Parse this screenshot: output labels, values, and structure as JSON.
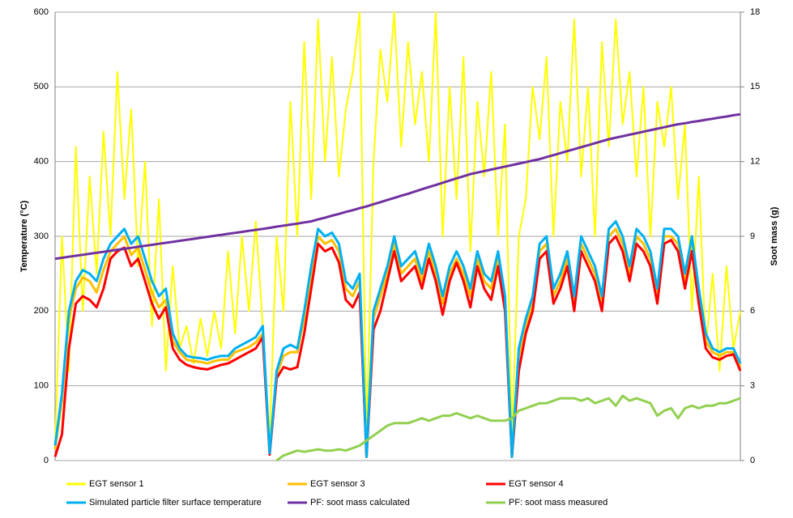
{
  "chart_data": {
    "type": "line",
    "ylabel": "Temperature (°C)",
    "y2label": "Soot mass (g)",
    "ylim": [
      0,
      600
    ],
    "yticks": [
      0,
      100,
      200,
      300,
      400,
      500,
      600
    ],
    "y2lim": [
      0,
      18
    ],
    "y2ticks": [
      0,
      3,
      6,
      9,
      12,
      15,
      18
    ],
    "grid": true,
    "legend": "bottom",
    "series": [
      {
        "name": "EGT sensor 1",
        "color": "#ffff00",
        "values": [
          20,
          300,
          120,
          420,
          200,
          380,
          250,
          440,
          300,
          520,
          350,
          470,
          260,
          400,
          180,
          350,
          120,
          260,
          150,
          180,
          130,
          190,
          140,
          200,
          150,
          280,
          170,
          300,
          200,
          320,
          180,
          30,
          300,
          200,
          480,
          300,
          560,
          350,
          590,
          400,
          540,
          380,
          470,
          520,
          600,
          30,
          400,
          550,
          480,
          600,
          420,
          560,
          450,
          520,
          400,
          600,
          300,
          500,
          350,
          540,
          280,
          480,
          380,
          520,
          300,
          450,
          30,
          300,
          350,
          500,
          430,
          540,
          300,
          480,
          400,
          590,
          380,
          500,
          300,
          560,
          420,
          590,
          450,
          520,
          380,
          500,
          300,
          480,
          420,
          500,
          350,
          450,
          200,
          380,
          150,
          250,
          120,
          260,
          150,
          200
        ]
      },
      {
        "name": "EGT sensor 3",
        "color": "#ffc000",
        "values": [
          15,
          80,
          190,
          230,
          245,
          240,
          225,
          255,
          280,
          290,
          300,
          275,
          285,
          255,
          225,
          205,
          215,
          160,
          145,
          135,
          133,
          132,
          130,
          133,
          135,
          135,
          145,
          148,
          152,
          158,
          170,
          10,
          115,
          140,
          145,
          145,
          190,
          250,
          300,
          290,
          295,
          280,
          230,
          220,
          240,
          5,
          190,
          220,
          250,
          290,
          250,
          260,
          270,
          240,
          280,
          250,
          210,
          250,
          270,
          250,
          220,
          270,
          240,
          230,
          270,
          210,
          5,
          140,
          180,
          210,
          280,
          290,
          220,
          240,
          270,
          210,
          290,
          270,
          250,
          210,
          300,
          310,
          290,
          250,
          300,
          290,
          270,
          220,
          300,
          300,
          290,
          240,
          290,
          220,
          160,
          145,
          140,
          145,
          145,
          125
        ]
      },
      {
        "name": "EGT sensor 4",
        "color": "#ff0000",
        "values": [
          5,
          35,
          150,
          210,
          220,
          215,
          205,
          230,
          270,
          280,
          285,
          260,
          270,
          240,
          210,
          190,
          205,
          150,
          135,
          128,
          125,
          123,
          122,
          125,
          128,
          130,
          135,
          140,
          145,
          150,
          165,
          8,
          110,
          125,
          122,
          125,
          170,
          230,
          290,
          280,
          285,
          265,
          215,
          205,
          225,
          5,
          175,
          200,
          240,
          280,
          240,
          250,
          260,
          230,
          270,
          240,
          195,
          240,
          265,
          240,
          205,
          260,
          230,
          215,
          260,
          200,
          5,
          120,
          170,
          200,
          270,
          280,
          210,
          230,
          260,
          200,
          280,
          260,
          240,
          200,
          290,
          300,
          280,
          240,
          290,
          280,
          260,
          210,
          290,
          295,
          280,
          230,
          280,
          210,
          150,
          138,
          135,
          140,
          142,
          120
        ]
      },
      {
        "name": "Simulated particle filter surface temperature",
        "color": "#00b0f0",
        "values": [
          20,
          90,
          200,
          240,
          255,
          250,
          240,
          270,
          290,
          300,
          310,
          290,
          300,
          270,
          240,
          220,
          230,
          170,
          150,
          140,
          138,
          137,
          135,
          138,
          140,
          140,
          150,
          155,
          160,
          165,
          180,
          10,
          120,
          150,
          155,
          150,
          200,
          260,
          310,
          300,
          305,
          290,
          240,
          230,
          250,
          5,
          200,
          230,
          260,
          300,
          260,
          270,
          280,
          250,
          290,
          260,
          220,
          260,
          280,
          260,
          230,
          280,
          250,
          240,
          280,
          220,
          5,
          150,
          190,
          220,
          290,
          300,
          230,
          250,
          280,
          220,
          300,
          280,
          260,
          220,
          310,
          320,
          300,
          260,
          310,
          300,
          280,
          230,
          310,
          310,
          300,
          250,
          300,
          230,
          170,
          150,
          145,
          150,
          150,
          130
        ]
      },
      {
        "name": "PF: soot mass calculated",
        "color": "#7030a0",
        "axis": "y2",
        "values": [
          8.1,
          8.14,
          8.18,
          8.22,
          8.26,
          8.3,
          8.34,
          8.38,
          8.42,
          8.46,
          8.5,
          8.54,
          8.58,
          8.62,
          8.66,
          8.7,
          8.74,
          8.78,
          8.82,
          8.86,
          8.9,
          8.94,
          8.98,
          9.02,
          9.06,
          9.1,
          9.14,
          9.18,
          9.22,
          9.26,
          9.3,
          9.34,
          9.39,
          9.43,
          9.47,
          9.51,
          9.56,
          9.6,
          9.68,
          9.75,
          9.83,
          9.9,
          9.98,
          10.05,
          10.13,
          10.2,
          10.29,
          10.37,
          10.46,
          10.54,
          10.63,
          10.71,
          10.8,
          10.89,
          10.98,
          11.06,
          11.15,
          11.24,
          11.33,
          11.41,
          11.5,
          11.56,
          11.62,
          11.68,
          11.74,
          11.8,
          11.86,
          11.92,
          11.98,
          12.04,
          12.1,
          12.18,
          12.26,
          12.34,
          12.42,
          12.5,
          12.58,
          12.66,
          12.74,
          12.82,
          12.9,
          12.96,
          13.02,
          13.08,
          13.14,
          13.2,
          13.26,
          13.32,
          13.38,
          13.44,
          13.5,
          13.54,
          13.59,
          13.63,
          13.68,
          13.72,
          13.77,
          13.81,
          13.86,
          13.9
        ]
      },
      {
        "name": "PF: soot mass measured",
        "color": "#92d050",
        "axis": "y2",
        "values": [
          null,
          null,
          null,
          null,
          null,
          null,
          null,
          null,
          null,
          null,
          null,
          null,
          null,
          null,
          null,
          null,
          null,
          null,
          null,
          null,
          null,
          null,
          null,
          null,
          null,
          null,
          null,
          null,
          null,
          null,
          null,
          null,
          0,
          0.2,
          0.3,
          0.4,
          0.35,
          0.4,
          0.45,
          0.4,
          0.4,
          0.45,
          0.4,
          0.5,
          0.6,
          0.8,
          1.0,
          1.2,
          1.4,
          1.5,
          1.5,
          1.5,
          1.6,
          1.7,
          1.6,
          1.7,
          1.8,
          1.8,
          1.9,
          1.8,
          1.7,
          1.8,
          1.7,
          1.6,
          1.6,
          1.6,
          1.7,
          2.0,
          2.1,
          2.2,
          2.3,
          2.3,
          2.4,
          2.5,
          2.5,
          2.5,
          2.4,
          2.5,
          2.3,
          2.4,
          2.5,
          2.2,
          2.6,
          2.4,
          2.5,
          2.4,
          2.3,
          1.8,
          2.0,
          2.1,
          1.7,
          2.1,
          2.2,
          2.1,
          2.2,
          2.2,
          2.3,
          2.3,
          2.4,
          2.5
        ]
      }
    ]
  }
}
